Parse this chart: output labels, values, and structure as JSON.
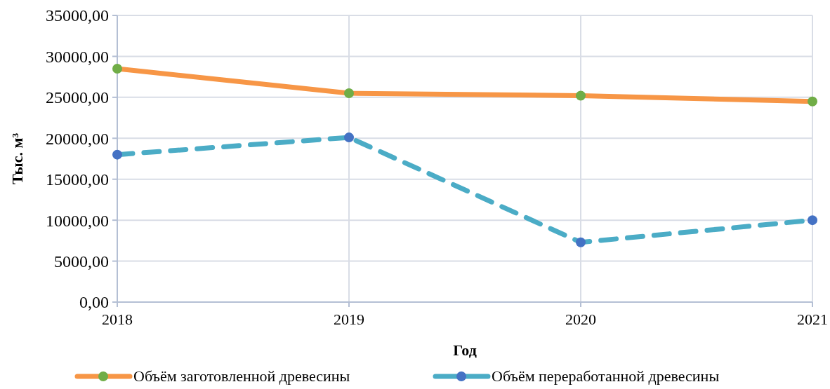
{
  "chart_data": {
    "type": "line",
    "xlabel": "Год",
    "ylabel": "Тыс. м³",
    "x": [
      2018,
      2019,
      2020,
      2021
    ],
    "xlim": [
      2018,
      2021
    ],
    "xticks": [
      2018,
      2019,
      2020,
      2021
    ],
    "ylim": [
      0,
      35000
    ],
    "yticks": [
      {
        "value": 0,
        "label": "0,00"
      },
      {
        "value": 5000,
        "label": "5000,00"
      },
      {
        "value": 10000,
        "label": "10000,00"
      },
      {
        "value": 15000,
        "label": "15000,00"
      },
      {
        "value": 20000,
        "label": "20000,00"
      },
      {
        "value": 25000,
        "label": "25000,00"
      },
      {
        "value": 30000,
        "label": "30000,00"
      },
      {
        "value": 35000,
        "label": "35000,00"
      }
    ],
    "series": [
      {
        "name": "Объём заготовленной древесины",
        "color": "#f79646",
        "colors": [
          "#70ad47",
          "#70ad47",
          "#70ad47",
          "#70ad47"
        ],
        "line_style": "solid",
        "values": [
          28500,
          25500,
          25200,
          24500
        ]
      },
      {
        "name": "Объём переработанной древесины",
        "color": "#4bacc6",
        "colors": [
          "#4472c4",
          "#4472c4",
          "#4472c4",
          "#4472c4"
        ],
        "line_style": "dashed",
        "values": [
          18000,
          20100,
          7300,
          10000
        ]
      }
    ],
    "marker": "circle",
    "grid": true,
    "legend": "bottom"
  }
}
